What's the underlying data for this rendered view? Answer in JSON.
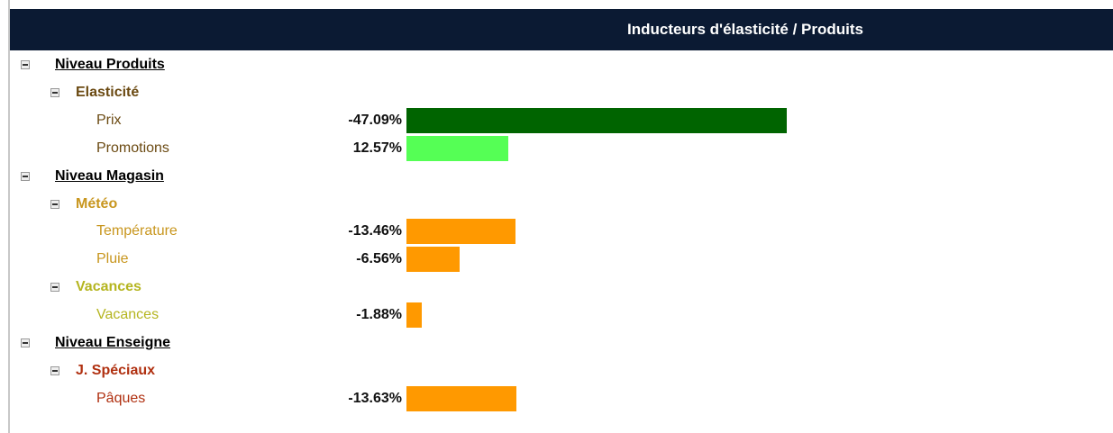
{
  "header": {
    "title": "Inducteurs d'élasticité / Produits"
  },
  "tree": [
    {
      "label": "Niveau Produits",
      "groups": [
        {
          "label": "Elasticité",
          "color": "#6b4a12",
          "items": [
            {
              "label": "Prix",
              "value": -47.09,
              "value_label": "-47.09%",
              "color": "#006400"
            },
            {
              "label": "Promotions",
              "value": 12.57,
              "value_label": "12.57%",
              "color": "#55ff55"
            }
          ]
        }
      ]
    },
    {
      "label": "Niveau Magasin",
      "groups": [
        {
          "label": "Météo",
          "color": "#c8961e",
          "items": [
            {
              "label": "Température",
              "value": -13.46,
              "value_label": "-13.46%",
              "color": "#ff9900"
            },
            {
              "label": "Pluie",
              "value": -6.56,
              "value_label": "-6.56%",
              "color": "#ff9900"
            }
          ]
        },
        {
          "label": "Vacances",
          "color": "#b5b520",
          "items": [
            {
              "label": "Vacances",
              "value": -1.88,
              "value_label": "-1.88%",
              "color": "#ff9900"
            }
          ]
        }
      ]
    },
    {
      "label": "Niveau Enseigne",
      "groups": [
        {
          "label": "J. Spéciaux",
          "color": "#b03010",
          "items": [
            {
              "label": "Pâques",
              "value": -13.63,
              "value_label": "-13.63%",
              "color": "#ff9900"
            }
          ]
        }
      ]
    }
  ]
}
